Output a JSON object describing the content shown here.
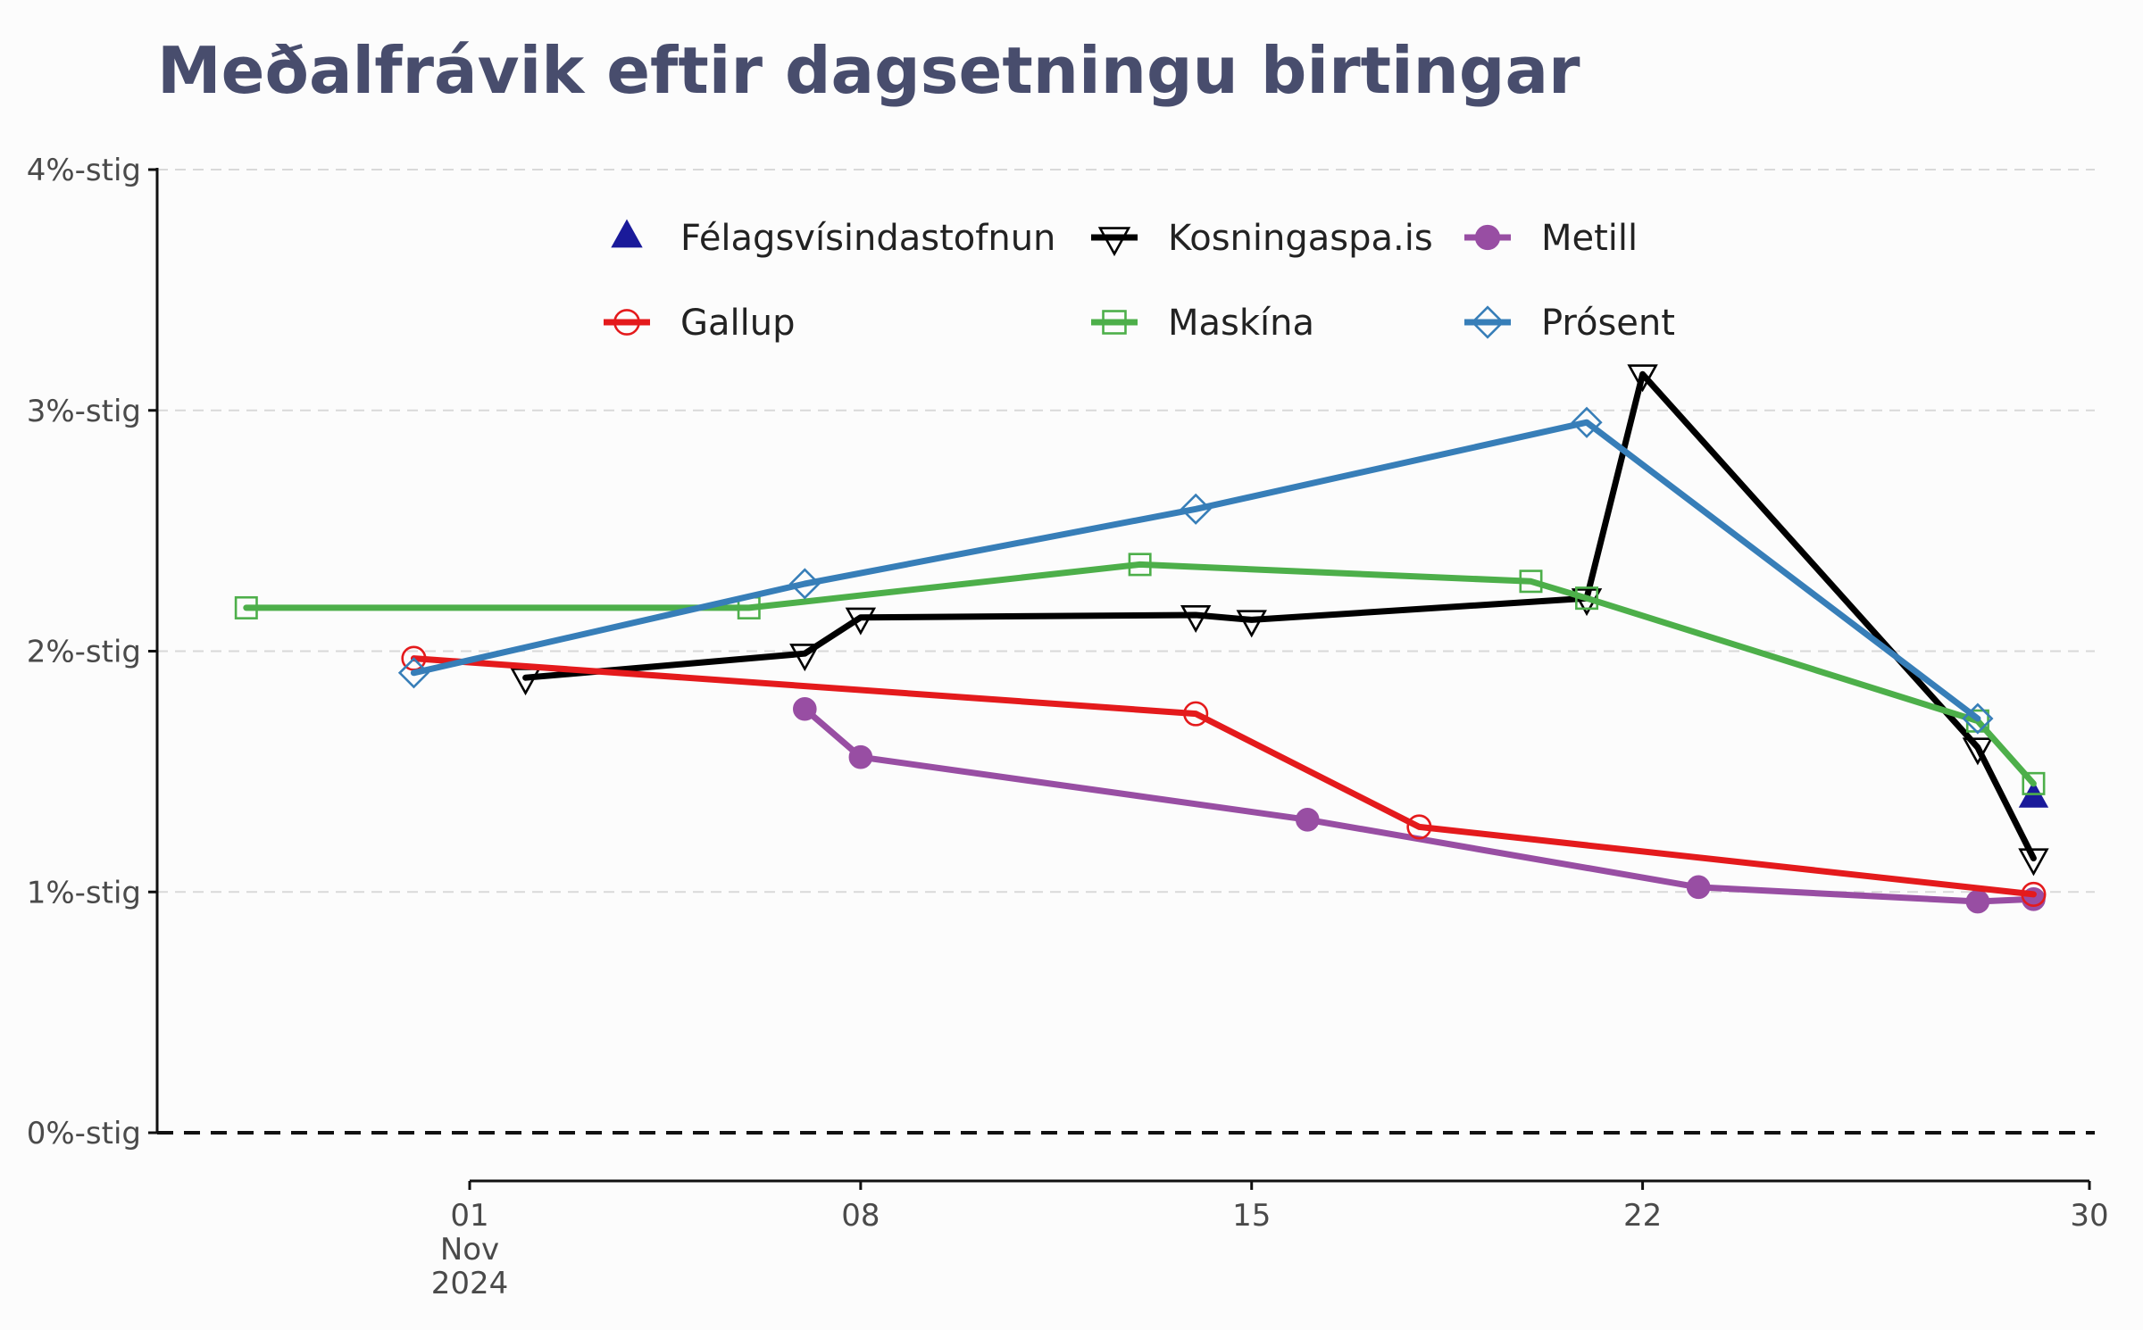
{
  "chart_data": {
    "type": "line",
    "title": "Meðalfrávik eftir dagsetningu birtingar",
    "xlabel": "",
    "ylabel": "",
    "x_type": "date",
    "xlim": [
      "2024-10-26",
      "2024-11-30"
    ],
    "ylim": [
      0,
      4
    ],
    "y_ticks": [
      {
        "value": 0,
        "label": "0%-stig"
      },
      {
        "value": 1,
        "label": "1%-stig"
      },
      {
        "value": 2,
        "label": "2%-stig"
      },
      {
        "value": 3,
        "label": "3%-stig"
      },
      {
        "value": 4,
        "label": "4%-stig"
      }
    ],
    "x_ticks": [
      {
        "value": "2024-11-01",
        "lines": [
          "01",
          "Nov",
          "2024"
        ]
      },
      {
        "value": "2024-11-08",
        "lines": [
          "08"
        ]
      },
      {
        "value": "2024-11-15",
        "lines": [
          "15"
        ]
      },
      {
        "value": "2024-11-22",
        "lines": [
          "22"
        ]
      },
      {
        "value": "2024-11-30",
        "lines": [
          "30"
        ]
      }
    ],
    "grid": "horizontal dashed",
    "reference_line": {
      "y": 0,
      "style": "dashed"
    },
    "legend": "top-center",
    "series": [
      {
        "name": "Félagsvísindastofnun",
        "color": "#1a1a9a",
        "marker": "triangle-up-filled",
        "line": false,
        "points": [
          {
            "x": "2024-11-29",
            "y": 1.39
          }
        ]
      },
      {
        "name": "Kosningaspa.is",
        "color": "#000000",
        "marker": "triangle-down-open",
        "points": [
          {
            "x": "2024-11-02",
            "y": 1.89
          },
          {
            "x": "2024-11-07",
            "y": 1.99
          },
          {
            "x": "2024-11-08",
            "y": 2.14
          },
          {
            "x": "2024-11-14",
            "y": 2.15
          },
          {
            "x": "2024-11-15",
            "y": 2.13
          },
          {
            "x": "2024-11-21",
            "y": 2.22
          },
          {
            "x": "2024-11-22",
            "y": 3.15
          },
          {
            "x": "2024-11-28",
            "y": 1.6
          },
          {
            "x": "2024-11-29",
            "y": 1.14
          }
        ]
      },
      {
        "name": "Metill",
        "color": "#984ea3",
        "marker": "circle-filled",
        "points": [
          {
            "x": "2024-11-07",
            "y": 1.76
          },
          {
            "x": "2024-11-08",
            "y": 1.56
          },
          {
            "x": "2024-11-16",
            "y": 1.3
          },
          {
            "x": "2024-11-23",
            "y": 1.02
          },
          {
            "x": "2024-11-28",
            "y": 0.96
          },
          {
            "x": "2024-11-29",
            "y": 0.97
          }
        ]
      },
      {
        "name": "Gallup",
        "color": "#e41a1c",
        "marker": "circle-open",
        "points": [
          {
            "x": "2024-10-31",
            "y": 1.97
          },
          {
            "x": "2024-11-14",
            "y": 1.74
          },
          {
            "x": "2024-11-18",
            "y": 1.27
          },
          {
            "x": "2024-11-29",
            "y": 0.99
          }
        ]
      },
      {
        "name": "Maskína",
        "color": "#4daf4a",
        "marker": "square-open",
        "points": [
          {
            "x": "2024-10-28",
            "y": 2.18
          },
          {
            "x": "2024-11-06",
            "y": 2.18
          },
          {
            "x": "2024-11-13",
            "y": 2.36
          },
          {
            "x": "2024-11-20",
            "y": 2.29
          },
          {
            "x": "2024-11-21",
            "y": 2.22
          },
          {
            "x": "2024-11-28",
            "y": 1.71
          },
          {
            "x": "2024-11-29",
            "y": 1.45
          }
        ]
      },
      {
        "name": "Prósent",
        "color": "#377eb8",
        "marker": "diamond-open",
        "points": [
          {
            "x": "2024-10-31",
            "y": 1.91
          },
          {
            "x": "2024-11-07",
            "y": 2.28
          },
          {
            "x": "2024-11-14",
            "y": 2.59
          },
          {
            "x": "2024-11-21",
            "y": 2.95
          },
          {
            "x": "2024-11-28",
            "y": 1.72
          }
        ]
      }
    ]
  }
}
